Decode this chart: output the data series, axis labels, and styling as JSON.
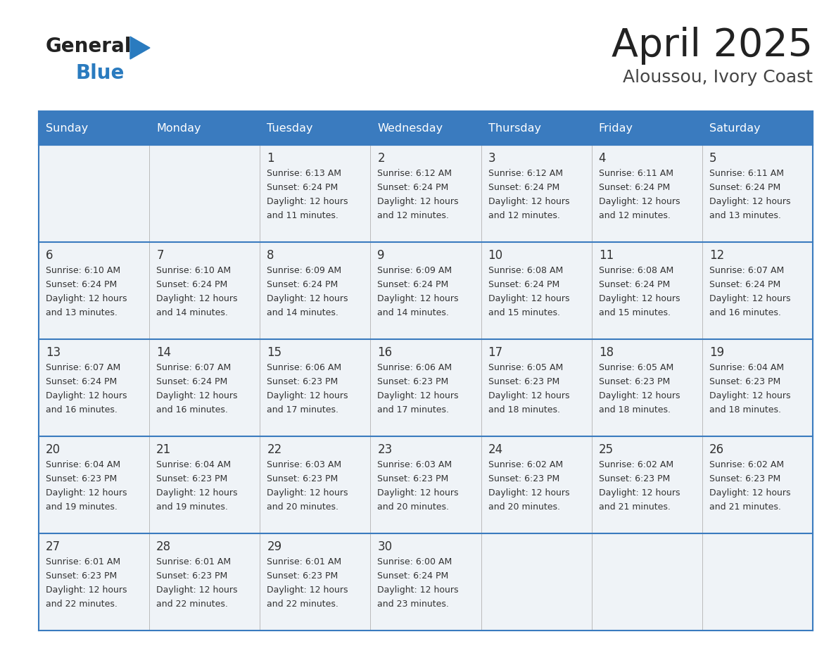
{
  "title": "April 2025",
  "subtitle": "Aloussou, Ivory Coast",
  "days_of_week": [
    "Sunday",
    "Monday",
    "Tuesday",
    "Wednesday",
    "Thursday",
    "Friday",
    "Saturday"
  ],
  "header_bg": "#3a7bbf",
  "header_text": "#ffffff",
  "row_bg": "#eff3f7",
  "border_color": "#3a7bbf",
  "text_color": "#333333",
  "title_color": "#222222",
  "subtitle_color": "#444444",
  "logo_general_color": "#222222",
  "logo_blue_color": "#2a7bbf",
  "calendar_data": [
    [
      {
        "day": null,
        "sunrise": null,
        "sunset": null,
        "daylight": null
      },
      {
        "day": null,
        "sunrise": null,
        "sunset": null,
        "daylight": null
      },
      {
        "day": 1,
        "sunrise": "6:13 AM",
        "sunset": "6:24 PM",
        "daylight": "12 hours\nand 11 minutes."
      },
      {
        "day": 2,
        "sunrise": "6:12 AM",
        "sunset": "6:24 PM",
        "daylight": "12 hours\nand 12 minutes."
      },
      {
        "day": 3,
        "sunrise": "6:12 AM",
        "sunset": "6:24 PM",
        "daylight": "12 hours\nand 12 minutes."
      },
      {
        "day": 4,
        "sunrise": "6:11 AM",
        "sunset": "6:24 PM",
        "daylight": "12 hours\nand 12 minutes."
      },
      {
        "day": 5,
        "sunrise": "6:11 AM",
        "sunset": "6:24 PM",
        "daylight": "12 hours\nand 13 minutes."
      }
    ],
    [
      {
        "day": 6,
        "sunrise": "6:10 AM",
        "sunset": "6:24 PM",
        "daylight": "12 hours\nand 13 minutes."
      },
      {
        "day": 7,
        "sunrise": "6:10 AM",
        "sunset": "6:24 PM",
        "daylight": "12 hours\nand 14 minutes."
      },
      {
        "day": 8,
        "sunrise": "6:09 AM",
        "sunset": "6:24 PM",
        "daylight": "12 hours\nand 14 minutes."
      },
      {
        "day": 9,
        "sunrise": "6:09 AM",
        "sunset": "6:24 PM",
        "daylight": "12 hours\nand 14 minutes."
      },
      {
        "day": 10,
        "sunrise": "6:08 AM",
        "sunset": "6:24 PM",
        "daylight": "12 hours\nand 15 minutes."
      },
      {
        "day": 11,
        "sunrise": "6:08 AM",
        "sunset": "6:24 PM",
        "daylight": "12 hours\nand 15 minutes."
      },
      {
        "day": 12,
        "sunrise": "6:07 AM",
        "sunset": "6:24 PM",
        "daylight": "12 hours\nand 16 minutes."
      }
    ],
    [
      {
        "day": 13,
        "sunrise": "6:07 AM",
        "sunset": "6:24 PM",
        "daylight": "12 hours\nand 16 minutes."
      },
      {
        "day": 14,
        "sunrise": "6:07 AM",
        "sunset": "6:24 PM",
        "daylight": "12 hours\nand 16 minutes."
      },
      {
        "day": 15,
        "sunrise": "6:06 AM",
        "sunset": "6:23 PM",
        "daylight": "12 hours\nand 17 minutes."
      },
      {
        "day": 16,
        "sunrise": "6:06 AM",
        "sunset": "6:23 PM",
        "daylight": "12 hours\nand 17 minutes."
      },
      {
        "day": 17,
        "sunrise": "6:05 AM",
        "sunset": "6:23 PM",
        "daylight": "12 hours\nand 18 minutes."
      },
      {
        "day": 18,
        "sunrise": "6:05 AM",
        "sunset": "6:23 PM",
        "daylight": "12 hours\nand 18 minutes."
      },
      {
        "day": 19,
        "sunrise": "6:04 AM",
        "sunset": "6:23 PM",
        "daylight": "12 hours\nand 18 minutes."
      }
    ],
    [
      {
        "day": 20,
        "sunrise": "6:04 AM",
        "sunset": "6:23 PM",
        "daylight": "12 hours\nand 19 minutes."
      },
      {
        "day": 21,
        "sunrise": "6:04 AM",
        "sunset": "6:23 PM",
        "daylight": "12 hours\nand 19 minutes."
      },
      {
        "day": 22,
        "sunrise": "6:03 AM",
        "sunset": "6:23 PM",
        "daylight": "12 hours\nand 20 minutes."
      },
      {
        "day": 23,
        "sunrise": "6:03 AM",
        "sunset": "6:23 PM",
        "daylight": "12 hours\nand 20 minutes."
      },
      {
        "day": 24,
        "sunrise": "6:02 AM",
        "sunset": "6:23 PM",
        "daylight": "12 hours\nand 20 minutes."
      },
      {
        "day": 25,
        "sunrise": "6:02 AM",
        "sunset": "6:23 PM",
        "daylight": "12 hours\nand 21 minutes."
      },
      {
        "day": 26,
        "sunrise": "6:02 AM",
        "sunset": "6:23 PM",
        "daylight": "12 hours\nand 21 minutes."
      }
    ],
    [
      {
        "day": 27,
        "sunrise": "6:01 AM",
        "sunset": "6:23 PM",
        "daylight": "12 hours\nand 22 minutes."
      },
      {
        "day": 28,
        "sunrise": "6:01 AM",
        "sunset": "6:23 PM",
        "daylight": "12 hours\nand 22 minutes."
      },
      {
        "day": 29,
        "sunrise": "6:01 AM",
        "sunset": "6:23 PM",
        "daylight": "12 hours\nand 22 minutes."
      },
      {
        "day": 30,
        "sunrise": "6:00 AM",
        "sunset": "6:24 PM",
        "daylight": "12 hours\nand 23 minutes."
      },
      {
        "day": null,
        "sunrise": null,
        "sunset": null,
        "daylight": null
      },
      {
        "day": null,
        "sunrise": null,
        "sunset": null,
        "daylight": null
      },
      {
        "day": null,
        "sunrise": null,
        "sunset": null,
        "daylight": null
      }
    ]
  ]
}
